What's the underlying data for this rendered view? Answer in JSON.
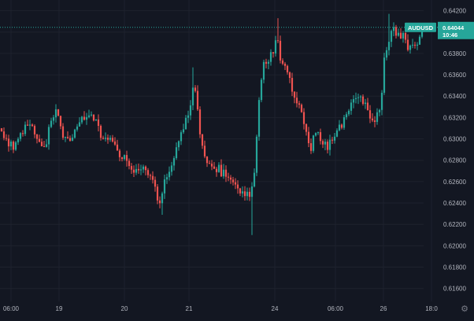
{
  "colors": {
    "background": "#131722",
    "up": "#26a69a",
    "down": "#ef5350",
    "grid": "#1e222d",
    "axis_text": "#b2b5be",
    "price_line": "#26a69a"
  },
  "chart_data": {
    "type": "candlestick",
    "symbol": "AUDUSD",
    "last_price": "0.64044",
    "countdown": "10:46",
    "y_ticks": [
      "0.64200",
      "0.64000",
      "0.63800",
      "0.63600",
      "0.63400",
      "0.63200",
      "0.63000",
      "0.62800",
      "0.62600",
      "0.62400",
      "0.62200",
      "0.62000",
      "0.61800",
      "0.61600"
    ],
    "x_ticks": [
      "06:00",
      "19",
      "20",
      "21",
      "24",
      "06:00",
      "26",
      "18:0"
    ],
    "ylim": [
      0.6148,
      0.643
    ],
    "candles": []
  },
  "icons": {
    "settings": "gear-icon"
  }
}
